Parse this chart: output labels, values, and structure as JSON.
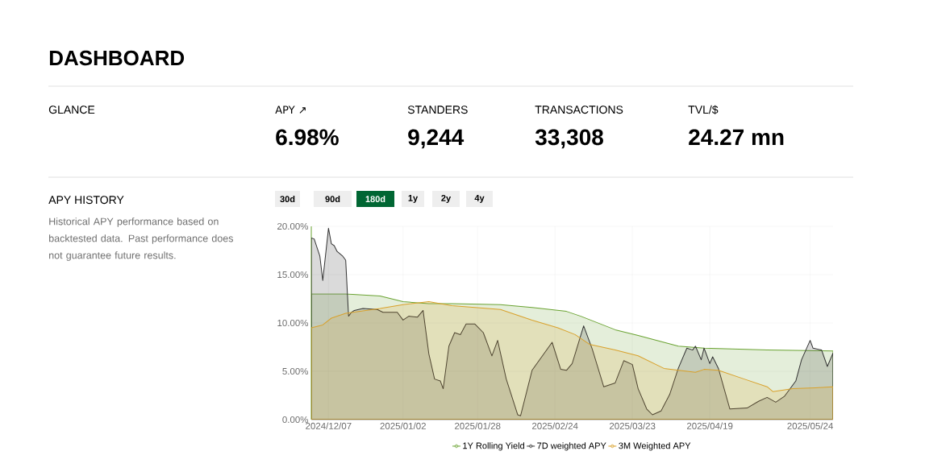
{
  "chart_data": {
    "type": "area",
    "title": "DASHBOARD",
    "annotations": [
      "GLANCE",
      "APY ↗",
      "6.98%",
      "STANDERS",
      "9,244",
      "TRANSACTIONS",
      "33,308",
      "TVL/$",
      "24.27 mn",
      "APY HISTORY",
      "Historical APY performance based on backtested data. Past performance does not guarantee future results.",
      "30d",
      "90d",
      "180d",
      "1y",
      "2y",
      "4y"
    ],
    "xlim": [
      "2024-12-01",
      "2025-06-01"
    ],
    "xticks": [
      {
        "value": "2024-12-07",
        "label": "2024/12/07"
      },
      {
        "value": "2025-01-02",
        "label": "2025/01/02"
      },
      {
        "value": "2025-01-28",
        "label": "2025/01/28"
      },
      {
        "value": "2025-02-24",
        "label": "2025/02/24"
      },
      {
        "value": "2025-03-23",
        "label": "2025/03/23"
      },
      {
        "value": "2025-04-19",
        "label": "2025/04/19"
      },
      {
        "value": "2025-05-24",
        "label": "2025/05/24"
      }
    ],
    "ylim": [
      0,
      20
    ],
    "yticks": [
      {
        "value": 0,
        "label": "0.00%"
      },
      {
        "value": 5,
        "label": "5.00%"
      },
      {
        "value": 10,
        "label": "10.00%"
      },
      {
        "value": 15,
        "label": "15.00%"
      },
      {
        "value": 20,
        "label": "20.00%"
      }
    ],
    "grid": true,
    "legend": "bottom",
    "series": [
      {
        "name": "1Y Rolling Yield",
        "color": "#6aa332",
        "x": [
          "2024-12-01",
          "2024-12-13",
          "2024-12-25",
          "2025-01-02",
          "2025-01-11",
          "2025-01-19",
          "2025-02-05",
          "2025-02-16",
          "2025-02-28",
          "2025-03-05",
          "2025-03-17",
          "2025-03-25",
          "2025-04-08",
          "2025-04-17",
          "2025-05-09",
          "2025-06-01"
        ],
        "values": [
          13.0,
          13.0,
          12.8,
          12.2,
          12.0,
          12.0,
          11.9,
          11.6,
          11.2,
          10.7,
          9.3,
          8.7,
          7.6,
          7.4,
          7.2,
          7.1
        ]
      },
      {
        "name": "7D weighted APY",
        "color": "#333333",
        "x": [
          "2024-12-01",
          "2024-12-02",
          "2024-12-04",
          "2024-12-05",
          "2024-12-07",
          "2024-12-08",
          "2024-12-09",
          "2024-12-10",
          "2024-12-12",
          "2024-12-13",
          "2024-12-14",
          "2024-12-15",
          "2024-12-16",
          "2024-12-19",
          "2024-12-24",
          "2024-12-26",
          "2024-12-31",
          "2025-01-02",
          "2025-01-04",
          "2025-01-07",
          "2025-01-09",
          "2025-01-11",
          "2025-01-13",
          "2025-01-15",
          "2025-01-16",
          "2025-01-18",
          "2025-01-20",
          "2025-01-22",
          "2025-01-24",
          "2025-01-27",
          "2025-01-30",
          "2025-02-02",
          "2025-02-04",
          "2025-02-07",
          "2025-02-11",
          "2025-02-12",
          "2025-02-16",
          "2025-02-23",
          "2025-02-26",
          "2025-02-28",
          "2025-03-02",
          "2025-03-06",
          "2025-03-09",
          "2025-03-13",
          "2025-03-17",
          "2025-03-20",
          "2025-03-23",
          "2025-03-25",
          "2025-03-28",
          "2025-03-30",
          "2025-04-02",
          "2025-04-05",
          "2025-04-08",
          "2025-04-11",
          "2025-04-13",
          "2025-04-14",
          "2025-04-16",
          "2025-04-17",
          "2025-04-19",
          "2025-04-20",
          "2025-04-22",
          "2025-04-26",
          "2025-05-02",
          "2025-05-06",
          "2025-05-09",
          "2025-05-12",
          "2025-05-15",
          "2025-05-19",
          "2025-05-21",
          "2025-05-24",
          "2025-05-25",
          "2025-05-28",
          "2025-05-30",
          "2025-06-01"
        ],
        "values": [
          18.8,
          18.7,
          16.9,
          14.4,
          19.8,
          18.2,
          18.0,
          17.4,
          16.9,
          16.5,
          10.7,
          11.1,
          11.3,
          11.5,
          11.4,
          11.1,
          11.1,
          10.3,
          10.7,
          10.6,
          11.3,
          6.8,
          4.2,
          4.0,
          3.2,
          7.6,
          9.0,
          8.8,
          9.9,
          9.9,
          9.0,
          6.6,
          8.2,
          4.2,
          0.5,
          0.4,
          5.1,
          8.0,
          5.2,
          5.1,
          5.8,
          9.7,
          7.3,
          3.4,
          3.8,
          6.1,
          5.7,
          3.2,
          1.1,
          0.5,
          0.9,
          2.6,
          5.3,
          7.4,
          7.2,
          7.6,
          6.2,
          7.4,
          5.8,
          6.5,
          5.3,
          1.1,
          1.2,
          1.9,
          2.3,
          1.8,
          2.4,
          4.0,
          6.2,
          8.2,
          7.4,
          7.2,
          5.5,
          6.9
        ]
      },
      {
        "name": "3M Weighted APY",
        "color": "#d9a12b",
        "x": [
          "2024-12-01",
          "2024-12-05",
          "2024-12-08",
          "2024-12-13",
          "2024-12-25",
          "2025-01-02",
          "2025-01-11",
          "2025-01-19",
          "2025-02-05",
          "2025-02-16",
          "2025-02-25",
          "2025-03-03",
          "2025-03-08",
          "2025-03-17",
          "2025-03-25",
          "2025-04-03",
          "2025-04-14",
          "2025-04-17",
          "2025-04-22",
          "2025-05-01",
          "2025-05-09",
          "2025-05-11",
          "2025-05-18",
          "2025-05-26",
          "2025-06-01"
        ],
        "values": [
          9.5,
          9.8,
          10.5,
          11.0,
          11.5,
          11.9,
          12.2,
          11.8,
          11.4,
          10.3,
          9.5,
          8.8,
          7.8,
          7.2,
          6.6,
          5.3,
          4.9,
          5.2,
          5.1,
          4.2,
          3.4,
          2.9,
          3.2,
          3.3,
          3.4
        ]
      }
    ]
  }
}
